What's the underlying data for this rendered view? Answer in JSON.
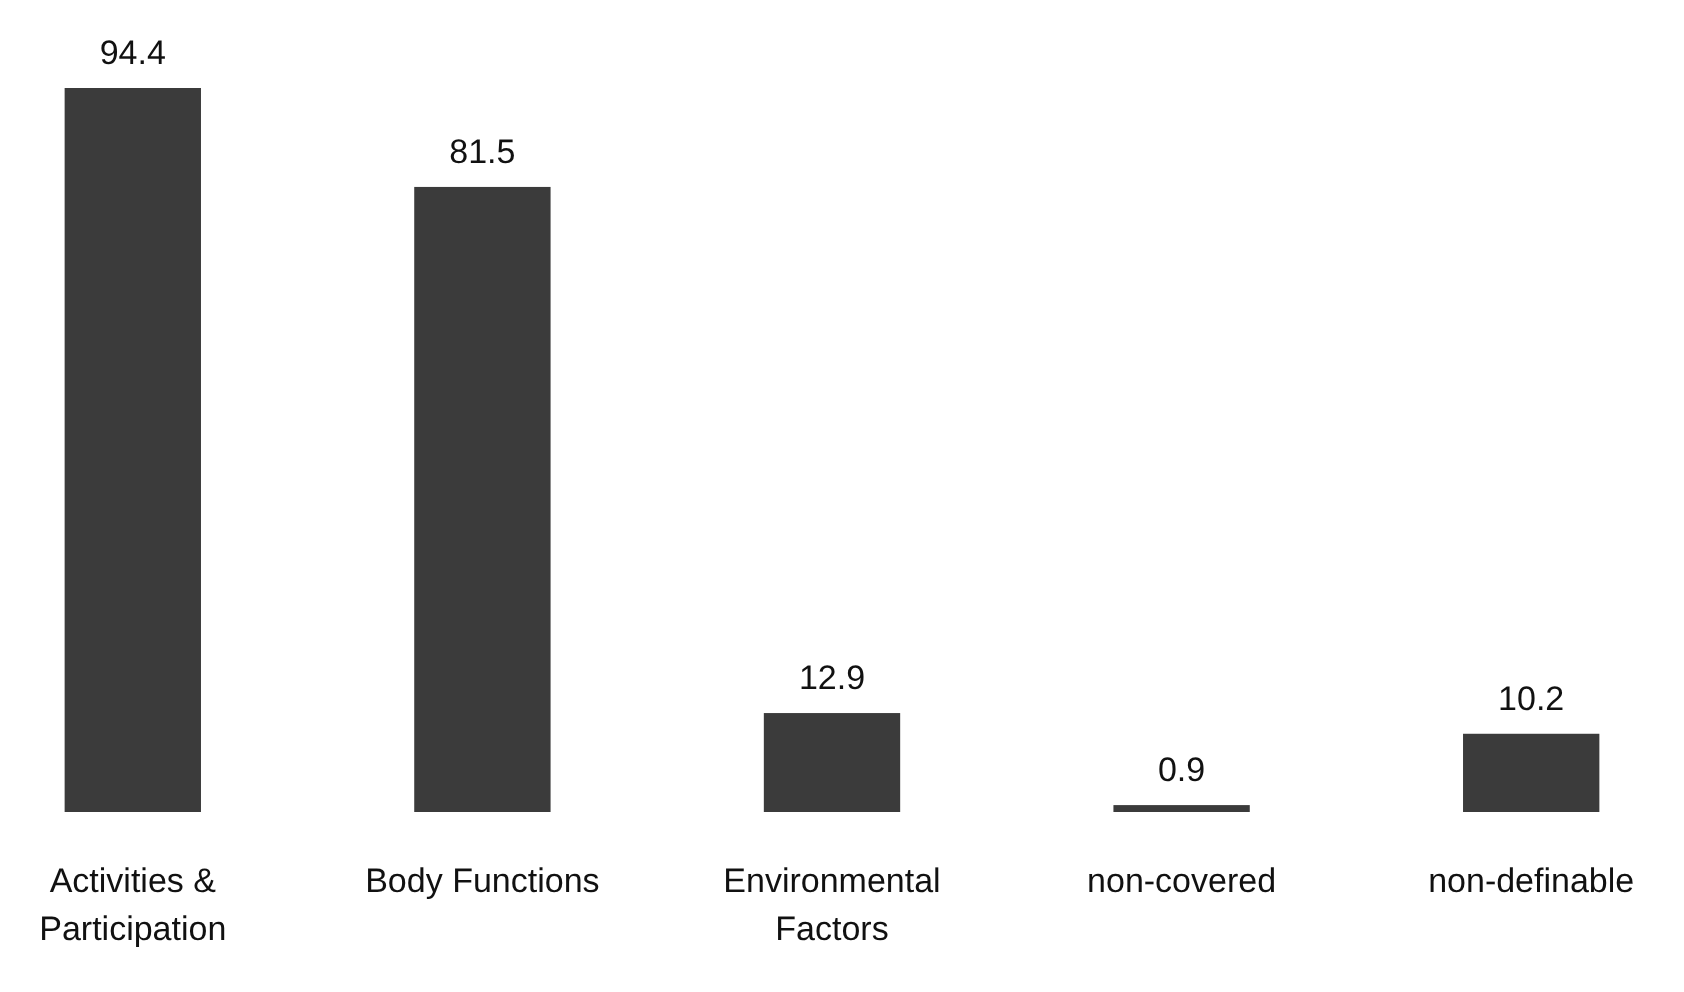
{
  "chart_data": {
    "type": "bar",
    "categories": [
      "Activities & Participation",
      "Body Functions",
      "Environmental Factors",
      "non-covered",
      "non-definable"
    ],
    "values": [
      94.4,
      81.5,
      12.9,
      0.9,
      10.2
    ],
    "color": "#3b3b3b",
    "data_labels": true
  }
}
